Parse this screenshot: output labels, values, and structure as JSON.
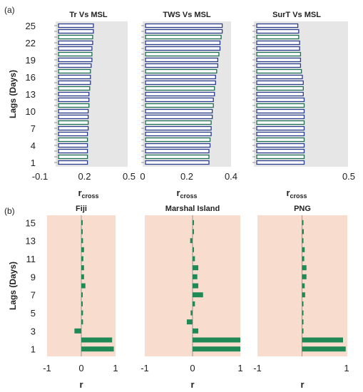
{
  "figure": {
    "panel_a_label": "(a)",
    "panel_b_label": "(b)"
  },
  "chart_data": [
    {
      "type": "bar",
      "orientation": "horizontal",
      "title": "Tr Vs MSL",
      "xlabel": "rcross",
      "ylabel": "Lags (Days)",
      "xlim": [
        -0.1,
        0.5
      ],
      "xticks": [
        "-0.1",
        "0.2",
        "0.5"
      ],
      "ytick_labels": [
        "1",
        "4",
        "7",
        "10",
        "13",
        "16",
        "19",
        "22",
        "25"
      ],
      "lags": [
        1,
        2,
        3,
        4,
        5,
        6,
        7,
        8,
        9,
        10,
        11,
        12,
        13,
        14,
        15,
        16,
        17,
        18,
        19,
        20,
        21,
        22,
        23,
        24,
        25
      ],
      "values": [
        0.22,
        0.22,
        0.22,
        0.22,
        0.22,
        0.22,
        0.225,
        0.225,
        0.225,
        0.225,
        0.23,
        0.23,
        0.23,
        0.235,
        0.24,
        0.24,
        0.24,
        0.245,
        0.25,
        0.25,
        0.25,
        0.255,
        0.255,
        0.26,
        0.26
      ],
      "colors": {
        "bar": "#2b3f8f",
        "bar_alt": "#1f6f55",
        "fill": "#ffffff",
        "background": "#e6e6e6"
      }
    },
    {
      "type": "bar",
      "orientation": "horizontal",
      "title": "TWS Vs MSL",
      "xlabel": "rcross",
      "ylabel": "",
      "xlim": [
        0,
        0.4
      ],
      "xticks": [
        "0",
        "0.2",
        "0.4"
      ],
      "lags": [
        1,
        2,
        3,
        4,
        5,
        6,
        7,
        8,
        9,
        10,
        11,
        12,
        13,
        14,
        15,
        16,
        17,
        18,
        19,
        20,
        21,
        22,
        23,
        24,
        25
      ],
      "values": [
        0.3,
        0.3,
        0.3,
        0.305,
        0.305,
        0.31,
        0.31,
        0.31,
        0.315,
        0.315,
        0.32,
        0.32,
        0.325,
        0.325,
        0.33,
        0.33,
        0.335,
        0.34,
        0.34,
        0.345,
        0.35,
        0.35,
        0.355,
        0.36,
        0.36
      ],
      "colors": {
        "bar": "#2b3f8f",
        "bar_alt": "#1f6f55",
        "fill": "#ffffff",
        "background": "#e6e6e6"
      }
    },
    {
      "type": "bar",
      "orientation": "horizontal",
      "title": "SurT Vs MSL",
      "xlabel": "rcross",
      "ylabel": "",
      "xlim": [
        -0.1,
        0.5
      ],
      "xticks": [
        "0.5"
      ],
      "lags": [
        1,
        2,
        3,
        4,
        5,
        6,
        7,
        8,
        9,
        10,
        11,
        12,
        13,
        14,
        15,
        16,
        17,
        18,
        19,
        20,
        21,
        22,
        23,
        24,
        25
      ],
      "values": [
        0.255,
        0.255,
        0.255,
        0.255,
        0.255,
        0.255,
        0.255,
        0.255,
        0.255,
        0.255,
        0.255,
        0.255,
        0.25,
        0.25,
        0.25,
        0.245,
        0.24,
        0.235,
        0.235,
        0.235,
        0.23,
        0.23,
        0.225,
        0.225,
        0.22
      ],
      "colors": {
        "bar": "#2b3f8f",
        "bar_alt": "#1f6f55",
        "fill": "#ffffff",
        "background": "#e6e6e6"
      }
    },
    {
      "type": "bar",
      "orientation": "horizontal",
      "title": "Fiji",
      "xlabel": "r",
      "ylabel": "Lags (Days)",
      "xlim": [
        -1,
        1
      ],
      "xticks": [
        "-1",
        "0",
        "1"
      ],
      "ytick_labels": [
        "1",
        "3",
        "5",
        "7",
        "9",
        "11",
        "13",
        "15"
      ],
      "lags": [
        1,
        2,
        3,
        4,
        5,
        6,
        7,
        8,
        9,
        10,
        11,
        12,
        13,
        14,
        15
      ],
      "values": [
        0.95,
        0.9,
        -0.2,
        0.05,
        0.05,
        0.0,
        0.03,
        0.12,
        0.08,
        0.08,
        0.06,
        0.08,
        0.05,
        0.04,
        0.04
      ],
      "colors": {
        "bar": "#1f8a55",
        "background": "#f8dccd",
        "axis": "#999999"
      }
    },
    {
      "type": "bar",
      "orientation": "horizontal",
      "title": "Marshal Island",
      "xlabel": "r",
      "ylabel": "",
      "xlim": [
        -1,
        1
      ],
      "xticks": [
        "-1",
        "0",
        "1"
      ],
      "lags": [
        1,
        2,
        3,
        4,
        5,
        6,
        7,
        8,
        9,
        10,
        11,
        12,
        13,
        14,
        15
      ],
      "values": [
        1.0,
        1.0,
        0.12,
        -0.12,
        -0.04,
        0.05,
        0.22,
        0.12,
        0.1,
        0.12,
        0.05,
        0.0,
        -0.05,
        0.0,
        0.0
      ],
      "colors": {
        "bar": "#1f8a55",
        "background": "#f8dccd",
        "axis": "#999999"
      }
    },
    {
      "type": "bar",
      "orientation": "horizontal",
      "title": "PNG",
      "xlabel": "r",
      "ylabel": "",
      "xlim": [
        -1,
        1
      ],
      "xticks": [
        "-1",
        "1"
      ],
      "lags": [
        1,
        2,
        3,
        4,
        5,
        6,
        7,
        8,
        9,
        10,
        11,
        12,
        13,
        14,
        15
      ],
      "values": [
        0.98,
        0.92,
        0.02,
        0.0,
        0.02,
        0.03,
        0.07,
        0.06,
        0.1,
        0.1,
        0.05,
        0.06,
        0.02,
        0.04,
        0.02
      ],
      "colors": {
        "bar": "#1f8a55",
        "background": "#f8dccd",
        "axis": "#999999"
      }
    }
  ]
}
